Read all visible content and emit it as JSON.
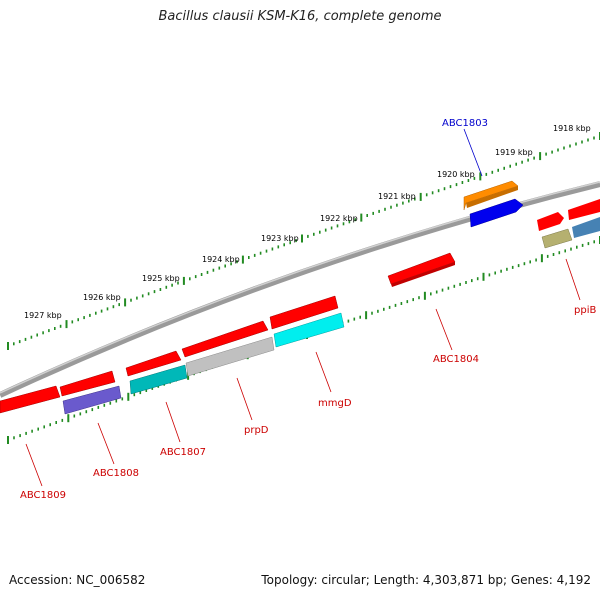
{
  "title": "Bacillus clausii KSM-K16, complete genome",
  "footer": {
    "accession": "Accession: NC_006582",
    "summary": "Topology: circular; Length: 4,303,871 bp; Genes: 4,192"
  },
  "scale_labels": [
    "1918 kbp",
    "1919 kbp",
    "1920 kbp",
    "1921 kbp",
    "1922 kbp",
    "1923 kbp",
    "1924 kbp",
    "1925 kbp",
    "1926 kbp",
    "1927 kbp"
  ],
  "gene_labels": [
    "ABC1803",
    "ppiB",
    "ABC1804",
    "mmgD",
    "prpD",
    "ABC1807",
    "ABC1808",
    "ABC1809"
  ],
  "colors": {
    "backbone": "#7a7a7a",
    "tick": "#228b22",
    "red_gene": "#ff0000",
    "orange_gene": "#ff8c00",
    "blue_gene": "#0000ff",
    "cyan_gene": "#00e5ee",
    "teal_gene": "#00b5b5",
    "gray_gene": "#b8b8b8",
    "purple_gene": "#6a5acd",
    "olive_gene": "#b5b070",
    "steel_gene": "#4682b4",
    "label_red": "#cc0000",
    "label_blue": "#0000cc"
  }
}
